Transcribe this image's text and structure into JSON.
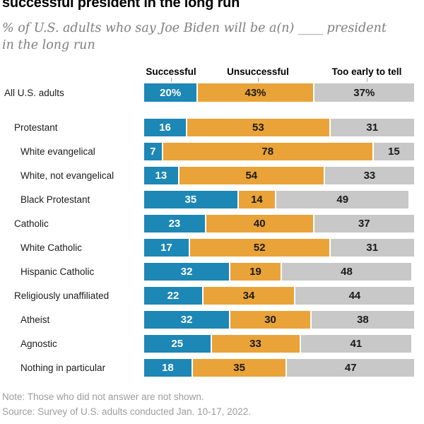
{
  "title": "successful president in the long run",
  "subtitle_line1": "% of U.S. adults who say Joe Biden will be a(n) ____ president",
  "subtitle_line2": "in the long run",
  "note": "Note: Those who did not answer are not shown.",
  "source": "Source: Survey of U.S. adults conducted Jan. 10-17, 2022.",
  "chart_data": {
    "type": "bar",
    "stacked": true,
    "orientation": "horizontal",
    "unit": "%",
    "xlim": [
      0,
      100
    ],
    "grid": false,
    "legend_position": "top-column-headers",
    "categories": [
      "All U.S. adults",
      "Protestant",
      "White evangelical",
      "White, not evangelical",
      "Black Protestant",
      "Catholic",
      "White Catholic",
      "Hispanic Catholic",
      "Religiously unaffiliated",
      "Atheist",
      "Agnostic",
      "Nothing in particular"
    ],
    "category_indent_levels": [
      0,
      1,
      2,
      2,
      2,
      1,
      2,
      2,
      1,
      2,
      2,
      2
    ],
    "series": [
      {
        "name": "Successful",
        "color": "#1d87b5",
        "text_color": "#ffffff",
        "values": [
          20,
          16,
          7,
          13,
          35,
          23,
          17,
          32,
          22,
          32,
          25,
          18
        ]
      },
      {
        "name": "Unsuccessful",
        "color": "#eaa338",
        "text_color": "#1a1a1a",
        "values": [
          43,
          53,
          78,
          54,
          14,
          40,
          52,
          19,
          34,
          30,
          33,
          35
        ]
      },
      {
        "name": "Too early to tell",
        "color": "#c8c8c8",
        "text_color": "#1a1a1a",
        "values": [
          37,
          31,
          15,
          33,
          49,
          37,
          31,
          48,
          44,
          38,
          41,
          47
        ]
      }
    ],
    "value_labels": [
      [
        "20%",
        "43%",
        "37%"
      ],
      [
        "16",
        "53",
        "31"
      ],
      [
        "7",
        "78",
        "15"
      ],
      [
        "13",
        "54",
        "33"
      ],
      [
        "35",
        "14",
        "49"
      ],
      [
        "23",
        "40",
        "37"
      ],
      [
        "17",
        "52",
        "31"
      ],
      [
        "32",
        "19",
        "48"
      ],
      [
        "22",
        "34",
        "44"
      ],
      [
        "32",
        "30",
        "38"
      ],
      [
        "25",
        "33",
        "41"
      ],
      [
        "18",
        "35",
        "47"
      ]
    ]
  }
}
